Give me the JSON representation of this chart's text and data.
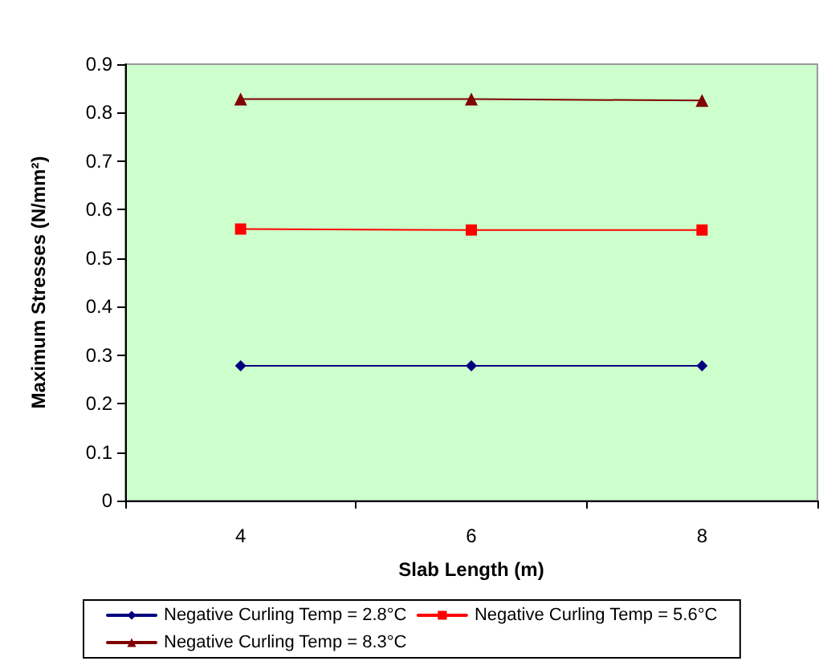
{
  "chart_data": {
    "type": "line",
    "xlabel": "Slab Length (m)",
    "ylabel": "Maximum Stresses (N/mm²)",
    "categories": [
      "4",
      "6",
      "8"
    ],
    "series": [
      {
        "name": "Negative Curling Temp = 2.8°C",
        "color": "#000080",
        "marker": "diamond",
        "values": [
          0.278,
          0.278,
          0.278
        ]
      },
      {
        "name": "Negative Curling Temp = 5.6°C",
        "color": "#ff0000",
        "marker": "square",
        "values": [
          0.56,
          0.558,
          0.558
        ]
      },
      {
        "name": "Negative Curling Temp = 8.3°C",
        "color": "#800000",
        "marker": "triangle",
        "values": [
          0.828,
          0.828,
          0.825
        ]
      }
    ],
    "ylim": [
      0,
      0.9
    ],
    "yticks": [
      0,
      0.1,
      0.2,
      0.3,
      0.4,
      0.5,
      0.6,
      0.7,
      0.8,
      0.9
    ],
    "grid": false,
    "legend": "bottom"
  }
}
